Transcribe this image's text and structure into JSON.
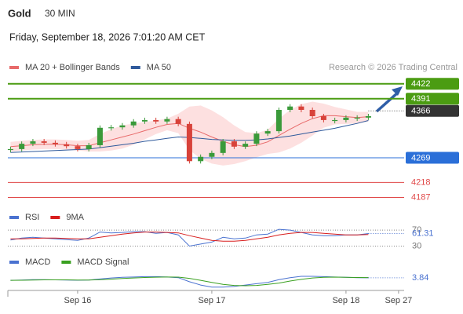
{
  "header": {
    "symbol": "Gold",
    "interval": "30 MIN",
    "datetime": "Friday, September 18, 2026 7:01:20 AM CET",
    "source": "Research © 2026 Trading Central"
  },
  "chart_data": [
    {
      "type": "candlestick",
      "up_color": "#3a9a3a",
      "down_color": "#d8423a",
      "values": [
        4287,
        4298,
        4303,
        4300,
        4297,
        4293,
        4287,
        4295,
        4331,
        4332,
        4336,
        4344,
        4347,
        4344,
        4349,
        4339,
        4262,
        4271,
        4279,
        4303,
        4292,
        4298,
        4319,
        4324,
        4368,
        4375,
        4368,
        4355,
        4347,
        4347,
        4352,
        4352,
        4355
      ],
      "series": [
        {
          "name": "MA 20 + Bollinger Bands",
          "color": "#e86a6a",
          "band_color": "#fde0e0",
          "values": [
            4292,
            4294,
            4296,
            4297,
            4297,
            4296,
            4294,
            4294,
            4300,
            4306,
            4312,
            4318,
            4325,
            4332,
            4338,
            4340,
            4330,
            4322,
            4312,
            4303,
            4296,
            4292,
            4295,
            4302,
            4315,
            4328,
            4340,
            4350,
            4356,
            4356,
            4354,
            4352,
            4354
          ],
          "band_upper": [
            4302,
            4304,
            4306,
            4307,
            4307,
            4306,
            4304,
            4306,
            4318,
            4328,
            4336,
            4340,
            4343,
            4346,
            4350,
            4360,
            4375,
            4377,
            4367,
            4353,
            4336,
            4322,
            4320,
            4327,
            4350,
            4368,
            4380,
            4385,
            4381,
            4374,
            4369,
            4364,
            4364
          ],
          "band_lower": [
            4282,
            4284,
            4286,
            4287,
            4287,
            4286,
            4284,
            4282,
            4282,
            4284,
            4288,
            4296,
            4307,
            4318,
            4326,
            4320,
            4285,
            4267,
            4257,
            4253,
            4256,
            4262,
            4270,
            4277,
            4280,
            4288,
            4300,
            4315,
            4331,
            4338,
            4339,
            4340,
            4344
          ]
        },
        {
          "name": "MA 50",
          "color": "#2f5a9c",
          "values": [
            4280,
            4281,
            4282,
            4283,
            4284,
            4285,
            4286,
            4287,
            4290,
            4293,
            4296,
            4299,
            4303,
            4306,
            4309,
            4312,
            4311,
            4309,
            4307,
            4306,
            4305,
            4305,
            4306,
            4308,
            4311,
            4314,
            4318,
            4322,
            4326,
            4330,
            4335,
            4340,
            4346
          ]
        }
      ],
      "levels": [
        {
          "value": 4422,
          "color": "#4b9c12",
          "style": "box"
        },
        {
          "value": 4391,
          "color": "#4b9c12",
          "style": "box"
        },
        {
          "value": 4366,
          "color": "#333333",
          "style": "current"
        },
        {
          "value": 4269,
          "color": "#2b6fd8",
          "style": "box"
        },
        {
          "value": 4218,
          "color": "#e04848",
          "style": "text"
        },
        {
          "value": 4187,
          "color": "#e04848",
          "style": "text"
        }
      ],
      "ylim": [
        4170,
        4441
      ],
      "xlim": [
        -0.1,
        35.2
      ],
      "xticks": [
        {
          "value": 6,
          "label": "Sep 16"
        },
        {
          "value": 18,
          "label": "Sep 17"
        },
        {
          "value": 30,
          "label": "Sep 18"
        },
        {
          "value": 34.7,
          "label": "Sep 27"
        }
      ]
    },
    {
      "type": "line",
      "series": [
        {
          "name": "RSI",
          "color": "#4a72d0",
          "values": [
            45,
            50,
            52,
            50,
            48,
            46,
            44,
            50,
            65,
            63,
            64,
            66,
            66,
            62,
            64,
            58,
            30,
            35,
            40,
            52,
            48,
            50,
            58,
            60,
            72,
            70,
            64,
            58,
            56,
            56,
            58,
            58,
            61.31
          ]
        },
        {
          "name": "9MA",
          "color": "#d81e1e",
          "values": [
            48,
            48,
            49,
            50,
            50,
            49,
            48,
            48,
            52,
            56,
            60,
            63,
            65,
            65,
            64,
            63,
            56,
            50,
            44,
            42,
            42,
            44,
            48,
            52,
            58,
            62,
            64,
            64,
            62,
            60,
            58,
            58,
            59
          ]
        }
      ],
      "ylim": [
        25,
        80
      ],
      "yticks": [
        70,
        30
      ]
    },
    {
      "type": "line",
      "series": [
        {
          "name": "MACD",
          "color": "#4a72d0",
          "values": [
            0,
            0.5,
            1,
            1,
            0.8,
            0.5,
            0.2,
            0.5,
            2,
            3.5,
            4.5,
            5,
            5.5,
            5.5,
            5,
            4,
            -2,
            -7,
            -10,
            -10,
            -9,
            -7,
            -5,
            -3,
            1,
            4,
            6,
            6,
            5.5,
            5,
            4.5,
            4,
            3.84
          ]
        },
        {
          "name": "MACD Signal",
          "color": "#3aa020",
          "values": [
            0,
            0.2,
            0.5,
            0.7,
            0.8,
            0.7,
            0.5,
            0.5,
            1,
            1.8,
            2.7,
            3.5,
            4.2,
            4.7,
            5,
            4.8,
            3,
            0,
            -3,
            -6,
            -7.5,
            -8,
            -7.5,
            -6,
            -4,
            -1,
            1.5,
            3.5,
            4.5,
            4.8,
            4.6,
            4.3,
            4.1
          ]
        }
      ],
      "ylim": [
        -15,
        20
      ]
    }
  ]
}
